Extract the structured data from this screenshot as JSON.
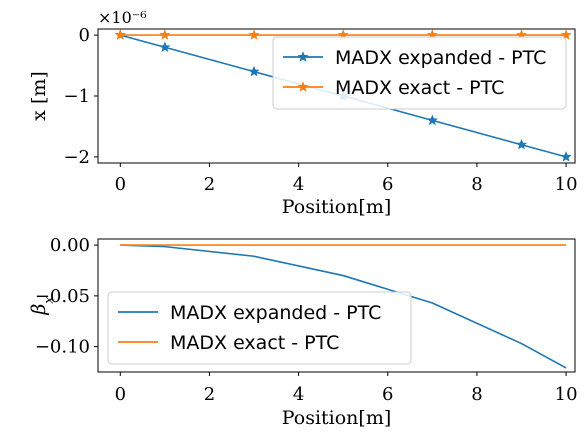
{
  "chart_data": [
    {
      "type": "line",
      "xlabel": "Position[m]",
      "ylabel": "x [m]",
      "offset_text": "×10⁻⁶",
      "xlim": [
        -0.5,
        10.2
      ],
      "ylim": [
        -2.1,
        0.1
      ],
      "xticks": [
        0,
        2,
        4,
        6,
        8,
        10
      ],
      "xtick_labels": [
        "0",
        "2",
        "4",
        "6",
        "8",
        "10"
      ],
      "yticks": [
        0,
        -1,
        -2
      ],
      "ytick_labels": [
        "0",
        "−1",
        "−2"
      ],
      "legend_position": "upper-right",
      "grid": false,
      "series": [
        {
          "name": "MADX expanded - PTC",
          "color": "#1f77b4",
          "marker": "star",
          "x": [
            0,
            1,
            3,
            5,
            7,
            9,
            10
          ],
          "y": [
            0,
            -0.2,
            -0.6,
            -1.0,
            -1.4,
            -1.8,
            -2.0
          ]
        },
        {
          "name": "MADX exact - PTC",
          "color": "#ff7f0e",
          "marker": "star",
          "x": [
            0,
            1,
            3,
            5,
            7,
            9,
            10
          ],
          "y": [
            0,
            0,
            0,
            0,
            0,
            0,
            0
          ]
        }
      ]
    },
    {
      "type": "line",
      "xlabel": "Position[m]",
      "ylabel": "β",
      "ylabel_sub": "x",
      "xlim": [
        -0.5,
        10.2
      ],
      "ylim": [
        -0.125,
        0.006
      ],
      "xticks": [
        0,
        2,
        4,
        6,
        8,
        10
      ],
      "xtick_labels": [
        "0",
        "2",
        "4",
        "6",
        "8",
        "10"
      ],
      "yticks": [
        0,
        -0.05,
        -0.1
      ],
      "ytick_labels": [
        "0.00",
        "−0.05",
        "−0.10"
      ],
      "legend_position": "center-left",
      "grid": false,
      "series": [
        {
          "name": "MADX expanded - PTC",
          "color": "#1f77b4",
          "marker": "none",
          "x": [
            0,
            1,
            3,
            5,
            7,
            9,
            10
          ],
          "y": [
            0,
            -0.0015,
            -0.011,
            -0.03,
            -0.057,
            -0.097,
            -0.121
          ]
        },
        {
          "name": "MADX exact - PTC",
          "color": "#ff7f0e",
          "marker": "none",
          "x": [
            0,
            1,
            3,
            5,
            7,
            9,
            10
          ],
          "y": [
            0,
            0,
            0,
            0,
            0,
            0,
            0
          ]
        }
      ]
    }
  ]
}
